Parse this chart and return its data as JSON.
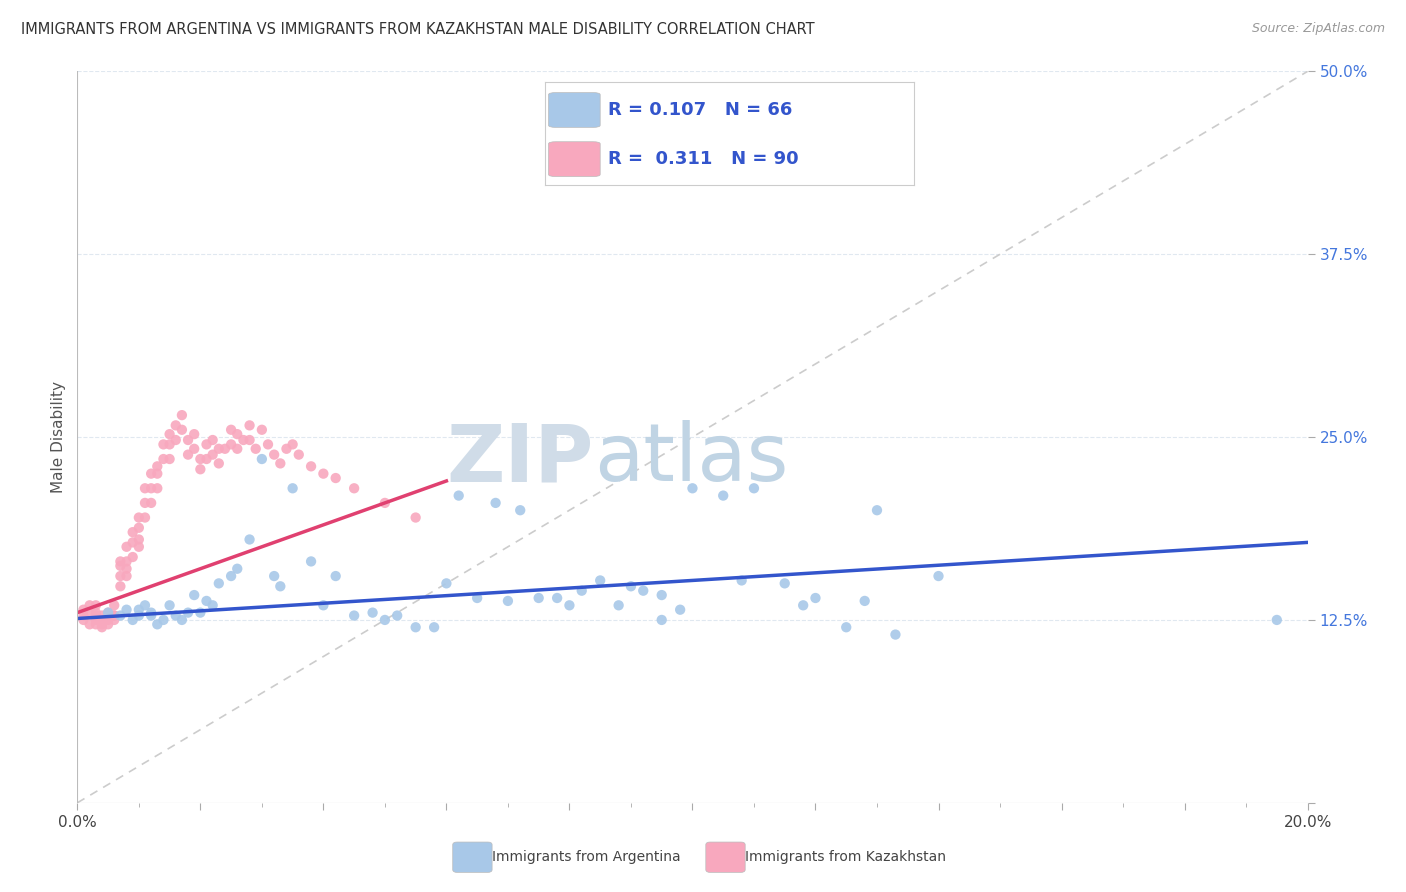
{
  "title": "IMMIGRANTS FROM ARGENTINA VS IMMIGRANTS FROM KAZAKHSTAN MALE DISABILITY CORRELATION CHART",
  "source": "Source: ZipAtlas.com",
  "ylabel": "Male Disability",
  "xlim": [
    0.0,
    0.2
  ],
  "ylim": [
    0.0,
    0.5
  ],
  "argentina_R": 0.107,
  "argentina_N": 66,
  "kazakhstan_R": 0.311,
  "kazakhstan_N": 90,
  "argentina_color": "#a8c8e8",
  "kazakhstan_color": "#f8a8be",
  "argentina_line_color": "#3355cc",
  "kazakhstan_line_color": "#e04070",
  "diagonal_color": "#cccccc",
  "background_color": "#ffffff",
  "watermark_zip": "ZIP",
  "watermark_atlas": "atlas",
  "watermark_color": "#dde8f0",
  "legend_label_argentina": "Immigrants from Argentina",
  "legend_label_kazakhstan": "Immigrants from Kazakhstan",
  "argentina_scatter_x": [
    0.005,
    0.007,
    0.008,
    0.009,
    0.01,
    0.01,
    0.011,
    0.012,
    0.012,
    0.013,
    0.014,
    0.015,
    0.016,
    0.017,
    0.018,
    0.019,
    0.02,
    0.021,
    0.022,
    0.023,
    0.025,
    0.026,
    0.028,
    0.03,
    0.032,
    0.033,
    0.035,
    0.038,
    0.04,
    0.042,
    0.045,
    0.048,
    0.05,
    0.052,
    0.055,
    0.058,
    0.06,
    0.062,
    0.065,
    0.068,
    0.07,
    0.072,
    0.075,
    0.078,
    0.08,
    0.082,
    0.085,
    0.088,
    0.09,
    0.092,
    0.095,
    0.095,
    0.098,
    0.1,
    0.105,
    0.108,
    0.11,
    0.115,
    0.118,
    0.12,
    0.125,
    0.128,
    0.13,
    0.133,
    0.14,
    0.195
  ],
  "argentina_scatter_y": [
    0.13,
    0.128,
    0.132,
    0.125,
    0.132,
    0.128,
    0.135,
    0.128,
    0.13,
    0.122,
    0.125,
    0.135,
    0.128,
    0.125,
    0.13,
    0.142,
    0.13,
    0.138,
    0.135,
    0.15,
    0.155,
    0.16,
    0.18,
    0.235,
    0.155,
    0.148,
    0.215,
    0.165,
    0.135,
    0.155,
    0.128,
    0.13,
    0.125,
    0.128,
    0.12,
    0.12,
    0.15,
    0.21,
    0.14,
    0.205,
    0.138,
    0.2,
    0.14,
    0.14,
    0.135,
    0.145,
    0.152,
    0.135,
    0.148,
    0.145,
    0.142,
    0.125,
    0.132,
    0.215,
    0.21,
    0.152,
    0.215,
    0.15,
    0.135,
    0.14,
    0.12,
    0.138,
    0.2,
    0.115,
    0.155,
    0.125
  ],
  "kazakhstan_scatter_x": [
    0.001,
    0.001,
    0.001,
    0.002,
    0.002,
    0.002,
    0.003,
    0.003,
    0.003,
    0.003,
    0.003,
    0.004,
    0.004,
    0.004,
    0.004,
    0.005,
    0.005,
    0.005,
    0.005,
    0.006,
    0.006,
    0.006,
    0.006,
    0.007,
    0.007,
    0.007,
    0.007,
    0.008,
    0.008,
    0.008,
    0.008,
    0.009,
    0.009,
    0.009,
    0.01,
    0.01,
    0.01,
    0.01,
    0.011,
    0.011,
    0.011,
    0.012,
    0.012,
    0.012,
    0.013,
    0.013,
    0.013,
    0.014,
    0.014,
    0.015,
    0.015,
    0.015,
    0.016,
    0.016,
    0.017,
    0.017,
    0.018,
    0.018,
    0.019,
    0.019,
    0.02,
    0.02,
    0.021,
    0.021,
    0.022,
    0.022,
    0.023,
    0.023,
    0.024,
    0.025,
    0.025,
    0.026,
    0.026,
    0.027,
    0.028,
    0.028,
    0.029,
    0.03,
    0.031,
    0.032,
    0.033,
    0.034,
    0.035,
    0.036,
    0.038,
    0.04,
    0.042,
    0.045,
    0.05,
    0.055
  ],
  "kazakhstan_scatter_y": [
    0.132,
    0.128,
    0.125,
    0.135,
    0.13,
    0.122,
    0.135,
    0.13,
    0.128,
    0.125,
    0.122,
    0.128,
    0.125,
    0.122,
    0.12,
    0.13,
    0.128,
    0.125,
    0.122,
    0.128,
    0.135,
    0.128,
    0.125,
    0.165,
    0.162,
    0.155,
    0.148,
    0.175,
    0.165,
    0.16,
    0.155,
    0.185,
    0.178,
    0.168,
    0.195,
    0.188,
    0.18,
    0.175,
    0.215,
    0.205,
    0.195,
    0.225,
    0.215,
    0.205,
    0.23,
    0.225,
    0.215,
    0.245,
    0.235,
    0.252,
    0.245,
    0.235,
    0.258,
    0.248,
    0.265,
    0.255,
    0.248,
    0.238,
    0.252,
    0.242,
    0.235,
    0.228,
    0.245,
    0.235,
    0.248,
    0.238,
    0.242,
    0.232,
    0.242,
    0.255,
    0.245,
    0.252,
    0.242,
    0.248,
    0.258,
    0.248,
    0.242,
    0.255,
    0.245,
    0.238,
    0.232,
    0.242,
    0.245,
    0.238,
    0.23,
    0.225,
    0.222,
    0.215,
    0.205,
    0.195
  ],
  "argentina_line_x": [
    0.0,
    0.2
  ],
  "argentina_line_y": [
    0.126,
    0.178
  ],
  "kazakhstan_line_x": [
    0.0,
    0.06
  ],
  "kazakhstan_line_y": [
    0.13,
    0.22
  ],
  "tick_color": "#888888",
  "grid_color": "#e0e8f0",
  "right_label_color": "#4477dd"
}
